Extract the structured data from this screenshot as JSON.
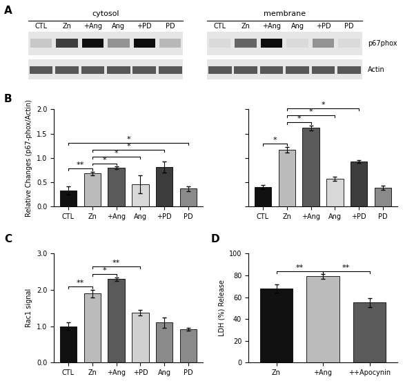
{
  "panel_labels": [
    "A",
    "B",
    "C",
    "D"
  ],
  "blot": {
    "groups": [
      {
        "title": "cytosol",
        "lanes": [
          "CTL",
          "Zn",
          "+Ang",
          "Ang",
          "+PD",
          "PD"
        ]
      },
      {
        "title": "membrane",
        "lanes": [
          "CTL",
          "Zn",
          "+Ang",
          "Ang",
          "+PD",
          "PD"
        ]
      }
    ],
    "rows": [
      "p67phox",
      "Actin"
    ]
  },
  "chart_data": [
    {
      "type": "bar",
      "y_label": "Relative Changes (p67-phox/Actin)",
      "categories": [
        "CTL",
        "Zn",
        "+Ang",
        "Ang",
        "+PD",
        "PD"
      ],
      "values": [
        0.33,
        0.68,
        0.8,
        0.46,
        0.81,
        0.37
      ],
      "errors": [
        0.08,
        0.04,
        0.03,
        0.18,
        0.11,
        0.05
      ],
      "colors": [
        "#111111",
        "#bbbbbb",
        "#5a5a5a",
        "#d8d8d8",
        "#3c3c3c",
        "#8a8a8a"
      ],
      "ylim": [
        0,
        2.0
      ],
      "yticks": [
        {
          "value": 0,
          "label": "0.0"
        },
        0.5,
        {
          "value": 1,
          "label": "1.0"
        },
        1.5,
        {
          "value": 2,
          "label": "2.0"
        }
      ],
      "significance": [
        {
          "between": [
            "CTL",
            "Zn"
          ],
          "text": "**"
        },
        {
          "between": [
            "Zn",
            "+Ang"
          ],
          "text": "*"
        },
        {
          "between": [
            "Zn",
            "Ang"
          ],
          "text": "*"
        },
        {
          "between": [
            "Zn",
            "+PD"
          ],
          "text": "*"
        },
        {
          "between": [
            "CTL",
            "PD"
          ],
          "text": "*"
        }
      ]
    },
    {
      "type": "bar",
      "tick_labels": "x",
      "categories": [
        "CTL",
        "Zn",
        "+Ang",
        "Ang",
        "+PD",
        "PD"
      ],
      "values": [
        0.4,
        1.17,
        1.62,
        0.57,
        0.93,
        0.39
      ],
      "errors": [
        0.04,
        0.06,
        0.05,
        0.04,
        0.03,
        0.04
      ],
      "colors": [
        "#111111",
        "#bbbbbb",
        "#5a5a5a",
        "#d8d8d8",
        "#3c3c3c",
        "#8a8a8a"
      ],
      "ylim": [
        0,
        2.0
      ],
      "yticks": [
        0,
        0.5,
        1,
        1.5,
        2
      ],
      "significance": [
        {
          "between": [
            "CTL",
            "Zn"
          ],
          "text": "*"
        },
        {
          "between": [
            "Zn",
            "+Ang"
          ],
          "text": "*"
        },
        {
          "between": [
            "Zn",
            "Ang"
          ],
          "text": "*"
        },
        {
          "between": [
            "Zn",
            "+PD"
          ],
          "text": "*"
        }
      ]
    },
    {
      "type": "bar",
      "y_label": "Rac1 signal",
      "categories": [
        "CTL",
        "Zn",
        "+Ang",
        "+PD",
        "Ang",
        "PD"
      ],
      "values": [
        1.0,
        1.9,
        2.3,
        1.37,
        1.1,
        0.92
      ],
      "errors": [
        0.1,
        0.1,
        0.05,
        0.08,
        0.15,
        0.04
      ],
      "colors": [
        "#111111",
        "#bbbbbb",
        "#5a5a5a",
        "#d0d0d0",
        "#8a8a8a",
        "#8a8a8a"
      ],
      "ylim": [
        0,
        3.0
      ],
      "yticks": [
        {
          "value": 0,
          "label": "0.0"
        },
        {
          "value": 1,
          "label": "1.0"
        },
        {
          "value": 2,
          "label": "2.0"
        },
        {
          "value": 3,
          "label": "3.0"
        }
      ],
      "significance": [
        {
          "between": [
            "CTL",
            "Zn"
          ],
          "text": "**"
        },
        {
          "between": [
            "Zn",
            "+Ang"
          ],
          "text": "*"
        },
        {
          "between": [
            "Zn",
            "+PD"
          ],
          "text": "**"
        }
      ]
    },
    {
      "type": "bar",
      "y_label": "LDH (%) Release",
      "categories": [
        "Zn",
        "+Ang",
        "++Apocynin"
      ],
      "values": [
        68,
        79,
        55
      ],
      "errors": [
        4,
        2,
        4
      ],
      "colors": [
        "#111111",
        "#bbbbbb",
        "#5a5a5a"
      ],
      "ylim": [
        0,
        100
      ],
      "yticks": [
        0,
        20,
        40,
        60,
        80,
        100
      ],
      "significance": [
        {
          "between": [
            "Zn",
            "+Ang"
          ],
          "text": "**"
        },
        {
          "between": [
            "+Ang",
            "++Apocynin"
          ],
          "text": "**"
        }
      ]
    }
  ]
}
